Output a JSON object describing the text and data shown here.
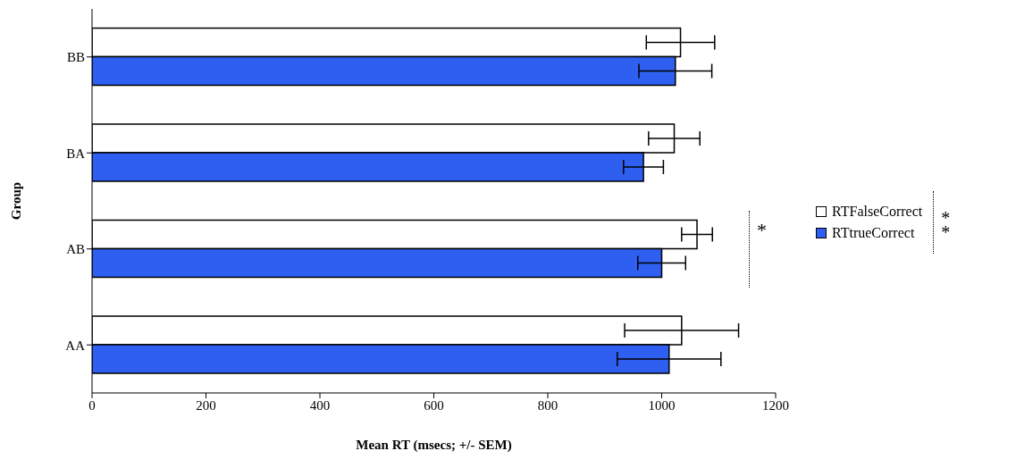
{
  "chart_data": {
    "type": "bar",
    "orientation": "horizontal",
    "xlabel": "Mean RT (msecs; +/- SEM)",
    "ylabel": "Group",
    "categories": [
      "BB",
      "BA",
      "AB",
      "AA"
    ],
    "series": [
      {
        "name": "RTFalseCorrect",
        "color": "#ffffff",
        "values": [
          1033,
          1022,
          1062,
          1035
        ],
        "errors": [
          60,
          45,
          27,
          100
        ]
      },
      {
        "name": "RTtrueCorrect",
        "color": "#2f5ff0",
        "values": [
          1024,
          968,
          1000,
          1013
        ],
        "errors": [
          64,
          35,
          42,
          91
        ]
      }
    ],
    "xlim": [
      0,
      1200
    ],
    "xticks": [
      0,
      200,
      400,
      600,
      800,
      1000,
      1200
    ],
    "legend": "right",
    "annotations": [
      "*",
      "**"
    ]
  }
}
